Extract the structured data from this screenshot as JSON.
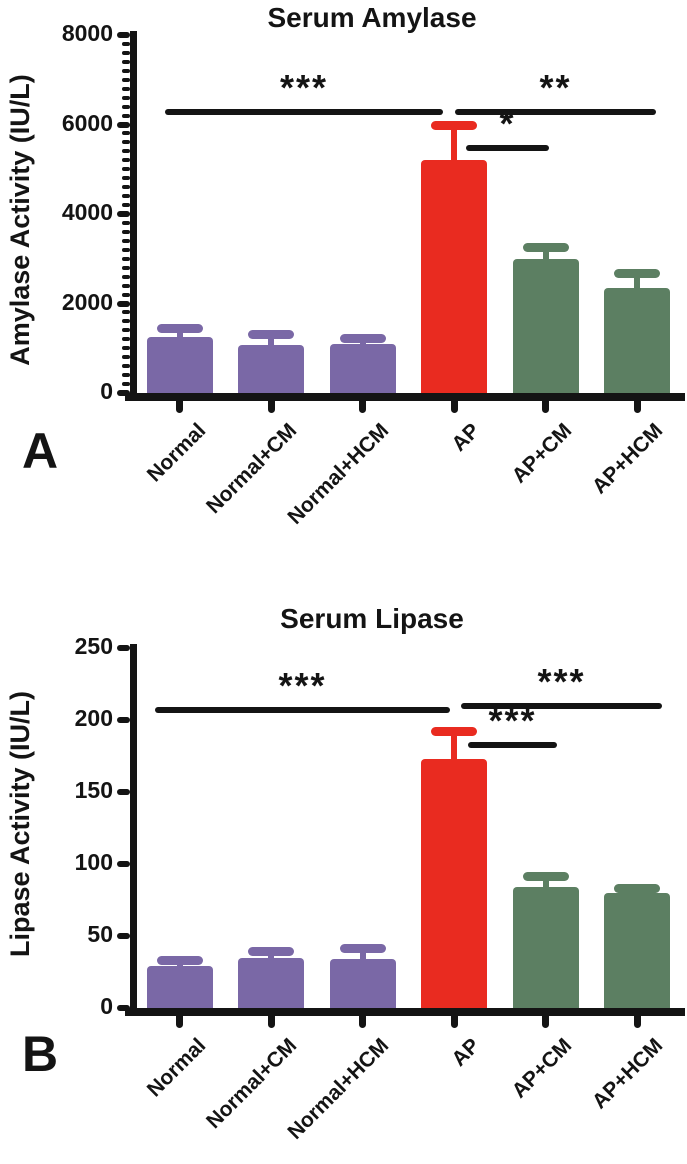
{
  "figure": {
    "background": "#ffffff",
    "text_color": "#141414"
  },
  "colors": {
    "normal_group_bar": "#7a68a6",
    "ap_bar": "#e92b20",
    "treated_group_bar": "#5c7f62",
    "axis_and_text": "#141414"
  },
  "chart_data": [
    {
      "panel_letter": "A",
      "type": "bar",
      "title": "Serum Amylase",
      "ylabel": "Amylase Activity (IU/L)",
      "xlabel": "",
      "categories": [
        "Normal",
        "Normal+CM",
        "Normal+HCM",
        "AP",
        "AP+CM",
        "AP+HCM"
      ],
      "values": [
        1250,
        1070,
        1100,
        5200,
        3000,
        2350
      ],
      "error_top": [
        1450,
        1300,
        1210,
        5980,
        3260,
        2670
      ],
      "bar_colors": [
        "#7a68a6",
        "#7a68a6",
        "#7a68a6",
        "#e92b20",
        "#5c7f62",
        "#5c7f62"
      ],
      "ylim": [
        0,
        8000
      ],
      "yticks": [
        0,
        2000,
        4000,
        6000,
        8000
      ],
      "minor_tick_step": 200,
      "grid": "off",
      "legend": "none",
      "significance": [
        {
          "from": "Normal",
          "to": "AP",
          "label": "***",
          "y": 6350,
          "x1": 165,
          "x2": 443
        },
        {
          "from": "AP",
          "to": "AP+HCM",
          "label": "**",
          "y": 6350,
          "x1": 455,
          "x2": 656
        },
        {
          "from": "AP",
          "to": "AP+CM",
          "label": "*",
          "y": 5550,
          "x1": 466,
          "x2": 549
        }
      ]
    },
    {
      "panel_letter": "B",
      "type": "bar",
      "title": "Serum Lipase",
      "ylabel": "Lipase Activity (IU/L)",
      "xlabel": "",
      "categories": [
        "Normal",
        "Normal+CM",
        "Normal+HCM",
        "AP",
        "AP+CM",
        "AP+HCM"
      ],
      "values": [
        29,
        35,
        34,
        173,
        84,
        80
      ],
      "error_top": [
        33,
        39,
        41,
        192,
        91,
        83
      ],
      "bar_colors": [
        "#7a68a6",
        "#7a68a6",
        "#7a68a6",
        "#e92b20",
        "#5c7f62",
        "#5c7f62"
      ],
      "ylim": [
        0,
        250
      ],
      "yticks": [
        0,
        50,
        100,
        150,
        200,
        250
      ],
      "minor_tick_step": null,
      "grid": "off",
      "legend": "none",
      "significance": [
        {
          "from": "Normal",
          "to": "AP",
          "label": "***",
          "y": 209,
          "x1": 155,
          "x2": 450
        },
        {
          "from": "AP",
          "to": "AP+HCM",
          "label": "***",
          "y": 212,
          "x1": 461,
          "x2": 662
        },
        {
          "from": "AP",
          "to": "AP+CM",
          "label": "***",
          "y": 185,
          "x1": 468,
          "x2": 557
        }
      ]
    }
  ]
}
